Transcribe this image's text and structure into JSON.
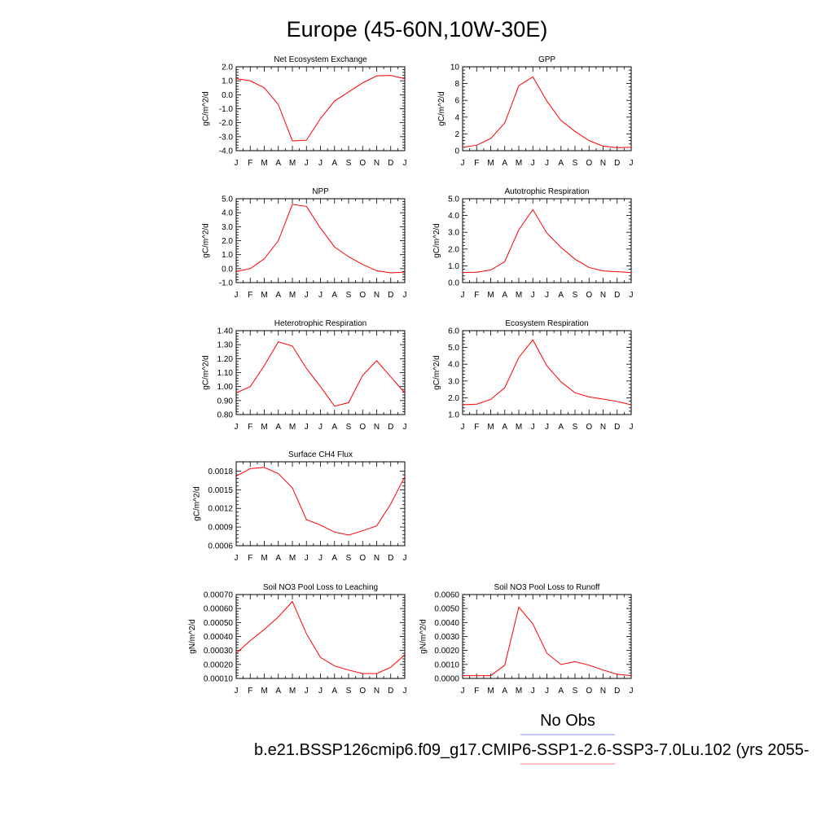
{
  "figure": {
    "title": "Europe (45-60N,10W-30E)",
    "legend": [
      {
        "label": "No Obs",
        "color": "#8c8cff"
      },
      {
        "label": "b.e21.BSSP126cmip6.f09_g17.CMIP6-SSP1-2.6-SSP3-7.0Lu.102 (yrs 2055-",
        "color": "#ff8080"
      }
    ],
    "line_color": "#ff0000"
  },
  "chart_data": [
    {
      "type": "line",
      "title": "Net Ecosystem Exchange",
      "ylabel": "gC/m^2/d",
      "categories": [
        "J",
        "F",
        "M",
        "A",
        "M",
        "J",
        "J",
        "A",
        "S",
        "O",
        "N",
        "D",
        "J"
      ],
      "values": [
        1.15,
        1.0,
        0.5,
        -0.7,
        -3.3,
        -3.25,
        -1.7,
        -0.45,
        0.2,
        0.85,
        1.35,
        1.38,
        1.15
      ],
      "ylim": [
        -4.0,
        2.0
      ],
      "yticks": [
        -4.0,
        -3.0,
        -2.0,
        -1.0,
        0.0,
        1.0,
        2.0
      ],
      "yticklabels": [
        "-4.0",
        "-3.0",
        "-2.0",
        "-1.0",
        "0.0",
        "1.0",
        "2.0"
      ]
    },
    {
      "type": "line",
      "title": "GPP",
      "ylabel": "gC/m^2/d",
      "categories": [
        "J",
        "F",
        "M",
        "A",
        "M",
        "J",
        "J",
        "A",
        "S",
        "O",
        "N",
        "D",
        "J"
      ],
      "values": [
        0.4,
        0.65,
        1.45,
        3.3,
        7.75,
        8.8,
        5.9,
        3.6,
        2.3,
        1.2,
        0.55,
        0.35,
        0.4
      ],
      "ylim": [
        0,
        10
      ],
      "yticks": [
        0,
        2,
        4,
        6,
        8,
        10
      ],
      "yticklabels": [
        "0",
        "2",
        "4",
        "6",
        "8",
        "10"
      ]
    },
    {
      "type": "line",
      "title": "NPP",
      "ylabel": "gC/m^2/d",
      "categories": [
        "J",
        "F",
        "M",
        "A",
        "M",
        "J",
        "J",
        "A",
        "S",
        "O",
        "N",
        "D",
        "J"
      ],
      "values": [
        -0.2,
        0.0,
        0.7,
        2.0,
        4.6,
        4.45,
        2.9,
        1.55,
        0.85,
        0.3,
        -0.15,
        -0.3,
        -0.25
      ],
      "ylim": [
        -1.0,
        5.0
      ],
      "yticks": [
        -1.0,
        0.0,
        1.0,
        2.0,
        3.0,
        4.0,
        5.0
      ],
      "yticklabels": [
        "-1.0",
        "0.0",
        "1.0",
        "2.0",
        "3.0",
        "4.0",
        "5.0"
      ]
    },
    {
      "type": "line",
      "title": "Autotrophic Respiration",
      "ylabel": "gC/m^2/d",
      "categories": [
        "J",
        "F",
        "M",
        "A",
        "M",
        "J",
        "J",
        "A",
        "S",
        "O",
        "N",
        "D",
        "J"
      ],
      "values": [
        0.6,
        0.62,
        0.75,
        1.25,
        3.15,
        4.35,
        2.95,
        2.1,
        1.4,
        0.9,
        0.7,
        0.65,
        0.6
      ],
      "ylim": [
        0.0,
        5.0
      ],
      "yticks": [
        0.0,
        1.0,
        2.0,
        3.0,
        4.0,
        5.0
      ],
      "yticklabels": [
        "0.0",
        "1.0",
        "2.0",
        "3.0",
        "4.0",
        "5.0"
      ]
    },
    {
      "type": "line",
      "title": "Heterotrophic Respiration",
      "ylabel": "gC/m^2/d",
      "categories": [
        "J",
        "F",
        "M",
        "A",
        "M",
        "J",
        "J",
        "A",
        "S",
        "O",
        "N",
        "D",
        "J"
      ],
      "values": [
        0.955,
        1.0,
        1.15,
        1.32,
        1.29,
        1.13,
        1.0,
        0.86,
        0.885,
        1.08,
        1.185,
        1.07,
        0.955
      ],
      "ylim": [
        0.8,
        1.4
      ],
      "yticks": [
        0.8,
        0.9,
        1.0,
        1.1,
        1.2,
        1.3,
        1.4
      ],
      "yticklabels": [
        "0.80",
        "0.90",
        "1.00",
        "1.10",
        "1.20",
        "1.30",
        "1.40"
      ]
    },
    {
      "type": "line",
      "title": "Ecosystem Respiration",
      "ylabel": "gC/m^2/d",
      "categories": [
        "J",
        "F",
        "M",
        "A",
        "M",
        "J",
        "J",
        "A",
        "S",
        "O",
        "N",
        "D",
        "J"
      ],
      "values": [
        1.58,
        1.62,
        1.9,
        2.6,
        4.4,
        5.45,
        3.9,
        2.95,
        2.3,
        2.05,
        1.92,
        1.78,
        1.58
      ],
      "ylim": [
        1.0,
        6.0
      ],
      "yticks": [
        1.0,
        2.0,
        3.0,
        4.0,
        5.0,
        6.0
      ],
      "yticklabels": [
        "1.0",
        "2.0",
        "3.0",
        "4.0",
        "5.0",
        "6.0"
      ]
    },
    {
      "type": "line",
      "title": "Surface CH4 Flux",
      "ylabel": "gC/m^2/d",
      "categories": [
        "J",
        "F",
        "M",
        "A",
        "M",
        "J",
        "J",
        "A",
        "S",
        "O",
        "N",
        "D",
        "J"
      ],
      "values": [
        0.00172,
        0.00184,
        0.00186,
        0.00176,
        0.00153,
        0.00102,
        0.00093,
        0.00082,
        0.00077,
        0.00084,
        0.00092,
        0.00127,
        0.00171
      ],
      "ylim": [
        0.0006,
        0.00195
      ],
      "yticks": [
        0.0006,
        0.0009,
        0.0012,
        0.0015,
        0.0018
      ],
      "yticklabels": [
        "0.0006",
        "0.0009",
        "0.0012",
        "0.0015",
        "0.0018"
      ]
    },
    {
      "type": "line",
      "title": "Soil NO3 Pool Loss to Leaching",
      "ylabel": "gN/m^2/d",
      "categories": [
        "J",
        "F",
        "M",
        "A",
        "M",
        "J",
        "J",
        "A",
        "S",
        "O",
        "N",
        "D",
        "J"
      ],
      "values": [
        0.00028,
        0.00037,
        0.00045,
        0.00054,
        0.00065,
        0.00042,
        0.00025,
        0.00019,
        0.00016,
        0.000135,
        0.000135,
        0.00018,
        0.00027
      ],
      "ylim": [
        0.0001,
        0.0007
      ],
      "yticks": [
        0.0001,
        0.0002,
        0.0003,
        0.0004,
        0.0005,
        0.0006,
        0.0007
      ],
      "yticklabels": [
        "0.00010",
        "0.00020",
        "0.00030",
        "0.00040",
        "0.00050",
        "0.00060",
        "0.00070"
      ]
    },
    {
      "type": "line",
      "title": "Soil NO3 Pool Loss to Runoff",
      "ylabel": "gN/m^2/d",
      "categories": [
        "J",
        "F",
        "M",
        "A",
        "M",
        "J",
        "J",
        "A",
        "S",
        "O",
        "N",
        "D",
        "J"
      ],
      "values": [
        0.0002,
        0.0002,
        0.0002,
        0.00095,
        0.0051,
        0.0039,
        0.0018,
        0.001,
        0.0012,
        0.00095,
        0.0006,
        0.0003,
        0.0002
      ],
      "ylim": [
        0.0,
        0.006
      ],
      "yticks": [
        0.0,
        0.001,
        0.002,
        0.003,
        0.004,
        0.005,
        0.006
      ],
      "yticklabels": [
        "0.0000",
        "0.0010",
        "0.0020",
        "0.0030",
        "0.0040",
        "0.0050",
        "0.0060"
      ]
    }
  ]
}
